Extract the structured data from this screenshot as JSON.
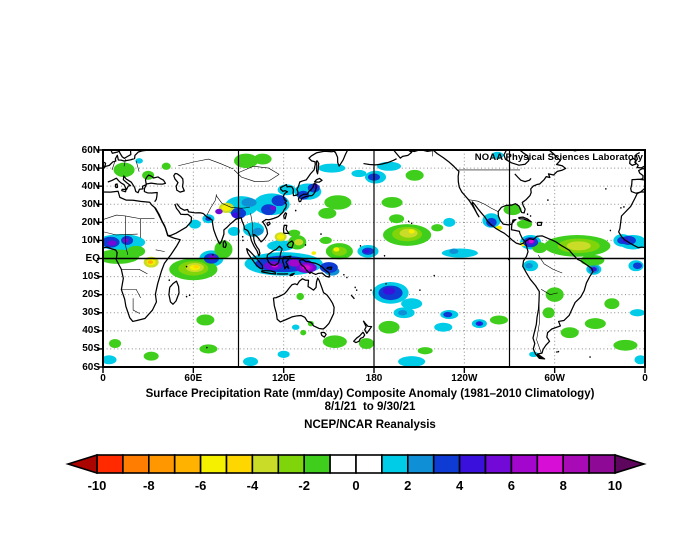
{
  "branding": {
    "text": "NOAA Physical Sciences Laboratory"
  },
  "titles": {
    "line1": "Surface Precipitation Rate (mm/day) Composite Anomaly (1981–2010 Climatology)",
    "line2": "8/1/21  to 9/30/21",
    "line3": "NCEP/NCAR Reanalysis"
  },
  "axes": {
    "y_ticks": [
      "60N",
      "50N",
      "40N",
      "30N",
      "20N",
      "10N",
      "EQ",
      "10S",
      "20S",
      "30S",
      "40S",
      "50S",
      "60S"
    ],
    "x_ticks": [
      "0",
      "60E",
      "120E",
      "180",
      "120W",
      "60W",
      "0"
    ]
  },
  "chart_data": {
    "type": "heatmap",
    "title": "Surface Precipitation Rate (mm/day) Composite Anomaly (1981-2010 Climatology)",
    "period_start": "8/1/21",
    "period_end": "9/30/21",
    "dataset": "NCEP/NCAR Reanalysis",
    "units": "mm/day",
    "projection": "equirectangular",
    "lon_range": [
      0,
      360
    ],
    "lat_range": [
      -60,
      60
    ],
    "grid": {
      "lat_dotted_step": 10,
      "lon_dotted": [
        60,
        120,
        240,
        300
      ],
      "lon_solid": [
        90,
        180,
        270
      ],
      "lat_solid": [
        0
      ]
    },
    "colorbar": {
      "tick_labels": [
        "-10",
        "-8",
        "-6",
        "-4",
        "-2",
        "0",
        "2",
        "4",
        "6",
        "8",
        "10"
      ],
      "tick_values": [
        -10,
        -8,
        -6,
        -4,
        -2,
        0,
        2,
        4,
        6,
        8,
        10
      ],
      "cell_range": [
        -10,
        10
      ],
      "cell_colors": [
        "#FF2A00",
        "#FF7D00",
        "#FF9800",
        "#FFB300",
        "#F4F000",
        "#FFD700",
        "#C9DC28",
        "#7FD40A",
        "#3FCE1C",
        "#FFFFFF",
        "#FFFFFF",
        "#00CCE8",
        "#0F8FD5",
        "#0D3BD3",
        "#3A10DC",
        "#7209D6",
        "#A306CC",
        "#D60ED6",
        "#A80BB5",
        "#8E0A96"
      ],
      "under_arrow_color": "#AA0500",
      "over_arrow_color": "#5E055E"
    },
    "palette": {
      "g": "#3FCE1C",
      "g2": "#7FD40A",
      "yg": "#C9DC28",
      "y": "#F4F000",
      "gold": "#FFD700",
      "amber": "#FFB300",
      "c": "#00CCE8",
      "b2": "#0F8FD5",
      "b": "#0D3BD3",
      "bv": "#3A10DC",
      "v": "#7209D6",
      "p": "#A306CC",
      "m": "#D60ED6"
    },
    "anomaly_regions": [
      [
        12,
        9,
        16,
        4.5,
        "c"
      ],
      [
        352,
        9,
        9,
        4,
        "c"
      ],
      [
        354,
        -4,
        5,
        3,
        "c"
      ],
      [
        61,
        19,
        4,
        2.5,
        "c"
      ],
      [
        72,
        0,
        8,
        4.5,
        "c"
      ],
      [
        70,
        22,
        4,
        2.5,
        "c"
      ],
      [
        92,
        29,
        11,
        5.5,
        "c"
      ],
      [
        87,
        15,
        4,
        2.5,
        "c"
      ],
      [
        100,
        16,
        7,
        4,
        "c"
      ],
      [
        112,
        30,
        12,
        6,
        "c"
      ],
      [
        122,
        38,
        6,
        3,
        "c"
      ],
      [
        136,
        37,
        9,
        4.5,
        "c"
      ],
      [
        152,
        50,
        9,
        2.5,
        "c"
      ],
      [
        170,
        47,
        5,
        2,
        "c"
      ],
      [
        181,
        45,
        7,
        3.5,
        "c"
      ],
      [
        190,
        51,
        8,
        2.5,
        "c"
      ],
      [
        120,
        -3,
        26,
        6.5,
        "c"
      ],
      [
        118,
        7,
        9,
        3,
        "c"
      ],
      [
        176,
        4,
        7,
        3.5,
        "c"
      ],
      [
        237,
        3,
        12,
        2.5,
        "c"
      ],
      [
        230,
        20,
        4,
        2.5,
        "c"
      ],
      [
        258,
        21,
        6,
        4,
        "c"
      ],
      [
        262,
        57,
        4,
        2,
        "c"
      ],
      [
        284,
        9,
        7,
        4,
        "c"
      ],
      [
        345,
        10,
        6,
        3.5,
        "c"
      ],
      [
        284,
        -4,
        5,
        3,
        "c"
      ],
      [
        326,
        -6,
        5,
        3,
        "c"
      ],
      [
        191,
        -19,
        12,
        6,
        "c"
      ],
      [
        205,
        -25,
        7,
        3,
        "c"
      ],
      [
        200,
        -30,
        7,
        3,
        "c"
      ],
      [
        230,
        -31,
        6,
        2.5,
        "c"
      ],
      [
        250,
        -36,
        5,
        2.5,
        "c"
      ],
      [
        226,
        -38,
        6,
        2.5,
        "c"
      ],
      [
        205,
        -57,
        9,
        3,
        "c"
      ],
      [
        286,
        -53,
        3,
        1.5,
        "c"
      ],
      [
        357,
        -56,
        4,
        2.5,
        "c"
      ],
      [
        120,
        -53,
        4,
        2,
        "c"
      ],
      [
        4,
        -56,
        5,
        2.5,
        "c"
      ],
      [
        98,
        -57,
        5,
        2.5,
        "c"
      ],
      [
        128,
        -38,
        2.5,
        1.5,
        "c"
      ],
      [
        24,
        54,
        2.5,
        1.5,
        "c"
      ],
      [
        355,
        -30,
        5,
        2,
        "c"
      ],
      [
        14,
        49,
        7,
        4,
        "g"
      ],
      [
        30,
        46,
        4,
        2.5,
        "g"
      ],
      [
        42,
        51,
        3,
        2,
        "g"
      ],
      [
        95,
        54,
        8,
        4,
        "g"
      ],
      [
        106,
        55,
        6,
        3,
        "g"
      ],
      [
        10,
        1,
        14,
        4,
        "g"
      ],
      [
        22,
        4,
        6,
        3,
        "g"
      ],
      [
        80,
        5,
        6,
        5,
        "g"
      ],
      [
        60,
        -6,
        16,
        6,
        "g"
      ],
      [
        129,
        9,
        6,
        4,
        "g"
      ],
      [
        127,
        14,
        4,
        2,
        "g"
      ],
      [
        156,
        31,
        9,
        4,
        "g"
      ],
      [
        149,
        25,
        6,
        3,
        "g"
      ],
      [
        207,
        46,
        6,
        3,
        "g"
      ],
      [
        192,
        31,
        7,
        3,
        "g"
      ],
      [
        202,
        13,
        16,
        6,
        "g"
      ],
      [
        195,
        22,
        5,
        2.5,
        "g"
      ],
      [
        222,
        17,
        4,
        2,
        "g"
      ],
      [
        272,
        27,
        6,
        3,
        "g"
      ],
      [
        280,
        19,
        5,
        2.5,
        "g"
      ],
      [
        290,
        6,
        5,
        3,
        "g"
      ],
      [
        315,
        7,
        22,
        6,
        "g"
      ],
      [
        325,
        -1,
        8,
        3,
        "g"
      ],
      [
        300,
        -20,
        6,
        4,
        "g"
      ],
      [
        296,
        -30,
        4,
        3,
        "g"
      ],
      [
        310,
        -41,
        6,
        3,
        "g"
      ],
      [
        327,
        -36,
        7,
        3,
        "g"
      ],
      [
        347,
        -48,
        8,
        3,
        "g"
      ],
      [
        338,
        -25,
        5,
        3,
        "g"
      ],
      [
        68,
        -34,
        6,
        3,
        "g"
      ],
      [
        32,
        -54,
        5,
        2.5,
        "g"
      ],
      [
        8,
        -47,
        4,
        2.5,
        "g"
      ],
      [
        70,
        -50,
        6,
        2.5,
        "g"
      ],
      [
        154,
        -46,
        8,
        3.5,
        "g"
      ],
      [
        175,
        -47,
        5,
        3,
        "g"
      ],
      [
        190,
        -38,
        7,
        3.5,
        "g"
      ],
      [
        263,
        -34,
        6,
        2.5,
        "g"
      ],
      [
        214,
        -51,
        5,
        2,
        "g"
      ],
      [
        131,
        -21,
        2.5,
        2,
        "g"
      ],
      [
        138,
        -36,
        2,
        1.5,
        "g"
      ],
      [
        133,
        -41,
        2,
        1.5,
        "g"
      ],
      [
        157,
        4,
        9,
        4.5,
        "g"
      ],
      [
        148,
        10,
        4,
        2,
        "g"
      ],
      [
        316,
        7,
        14,
        4,
        "g2"
      ],
      [
        202,
        13.5,
        10,
        4,
        "g2"
      ],
      [
        60,
        -5.5,
        10,
        4,
        "g2"
      ],
      [
        157,
        4,
        5,
        2.5,
        "g2"
      ],
      [
        316,
        7,
        8,
        2.5,
        "yg"
      ],
      [
        203,
        14,
        6,
        2.5,
        "yg"
      ],
      [
        61,
        -5,
        6,
        2.5,
        "yg"
      ],
      [
        32,
        -2,
        5,
        3,
        "yg"
      ],
      [
        82,
        28,
        5,
        2.8,
        "yg"
      ],
      [
        118,
        12,
        4,
        2.5,
        "yg"
      ],
      [
        130,
        9,
        3,
        1.8,
        "yg"
      ],
      [
        61,
        -5,
        3.5,
        1.5,
        "y"
      ],
      [
        32,
        -2,
        3,
        1.8,
        "y"
      ],
      [
        82,
        28,
        3.3,
        1.7,
        "y"
      ],
      [
        118,
        12,
        2.5,
        1.5,
        "y"
      ],
      [
        263,
        17,
        2,
        1.2,
        "y"
      ],
      [
        279,
        8,
        2,
        1.2,
        "y"
      ],
      [
        155,
        5,
        2,
        1.2,
        "y"
      ],
      [
        140,
        3,
        1.5,
        1,
        "y"
      ],
      [
        205,
        15,
        2,
        1.2,
        "y"
      ],
      [
        62,
        -4.5,
        1.8,
        0.9,
        "gold"
      ],
      [
        31.5,
        -2,
        1.8,
        1,
        "amber"
      ],
      [
        97,
        31,
        5,
        2.5,
        "b2"
      ],
      [
        103,
        15,
        3.5,
        2,
        "b2"
      ],
      [
        152,
        -7,
        5,
        2.5,
        "b2"
      ],
      [
        233,
        4,
        3,
        1.5,
        "b2"
      ],
      [
        283,
        -4,
        2.5,
        1.5,
        "b2"
      ],
      [
        199,
        -30,
        3,
        1.5,
        "b2"
      ],
      [
        326,
        -6,
        3.5,
        2.2,
        "b2"
      ],
      [
        5,
        9,
        6,
        3,
        "b"
      ],
      [
        16,
        10,
        4,
        2.5,
        "b"
      ],
      [
        349,
        10,
        5,
        2.5,
        "b"
      ],
      [
        355,
        -4,
        3,
        1.8,
        "b"
      ],
      [
        72,
        0,
        5,
        2.8,
        "b"
      ],
      [
        70,
        22,
        2,
        1.2,
        "b"
      ],
      [
        90,
        25,
        5,
        3,
        "b"
      ],
      [
        110,
        27,
        5,
        3,
        "b"
      ],
      [
        117,
        32,
        5,
        3,
        "b"
      ],
      [
        133,
        35,
        4,
        2.5,
        "b"
      ],
      [
        140,
        39,
        4,
        2.5,
        "b"
      ],
      [
        180,
        45,
        4,
        2,
        "b"
      ],
      [
        120,
        -3,
        19,
        4.5,
        "b"
      ],
      [
        150,
        -5,
        6,
        3,
        "b"
      ],
      [
        176,
        4,
        4,
        2,
        "b"
      ],
      [
        191,
        -19,
        8,
        4,
        "b"
      ],
      [
        229,
        -31,
        3,
        1.5,
        "b"
      ],
      [
        250,
        -36,
        2.5,
        1.3,
        "b"
      ],
      [
        258,
        20,
        3.5,
        2.5,
        "b"
      ],
      [
        284,
        9,
        5,
        2.8,
        "b"
      ],
      [
        345,
        10,
        3.5,
        2,
        "b"
      ],
      [
        88,
        24,
        2.5,
        1.5,
        "bv"
      ],
      [
        141,
        40,
        2,
        1.2,
        "bv"
      ],
      [
        175,
        4,
        2,
        1,
        "bv"
      ],
      [
        190,
        -18,
        4,
        2,
        "bv"
      ],
      [
        250,
        -36,
        1.3,
        0.8,
        "bv"
      ],
      [
        347,
        10,
        2,
        1.2,
        "bv"
      ],
      [
        326,
        -6,
        2,
        1.2,
        "bv"
      ],
      [
        6,
        8.5,
        3,
        1.5,
        "v"
      ],
      [
        15,
        10,
        2,
        1.2,
        "v"
      ],
      [
        72.5,
        0.5,
        2.5,
        1.4,
        "v"
      ],
      [
        113,
        -4,
        6,
        2.5,
        "v"
      ],
      [
        135,
        -5,
        7,
        3,
        "v"
      ],
      [
        113,
        28,
        2,
        1.2,
        "v"
      ],
      [
        284,
        9.5,
        3,
        1.8,
        "v"
      ],
      [
        77,
        26,
        2.5,
        1.5,
        "v"
      ],
      [
        127,
        -2.5,
        4,
        2,
        "p"
      ],
      [
        135,
        -5,
        4.5,
        2,
        "p"
      ],
      [
        135,
        -5,
        2.8,
        1.2,
        "m"
      ],
      [
        114,
        -4,
        2.2,
        1,
        "m"
      ],
      [
        284.5,
        9.5,
        1.6,
        1,
        "m"
      ]
    ]
  }
}
